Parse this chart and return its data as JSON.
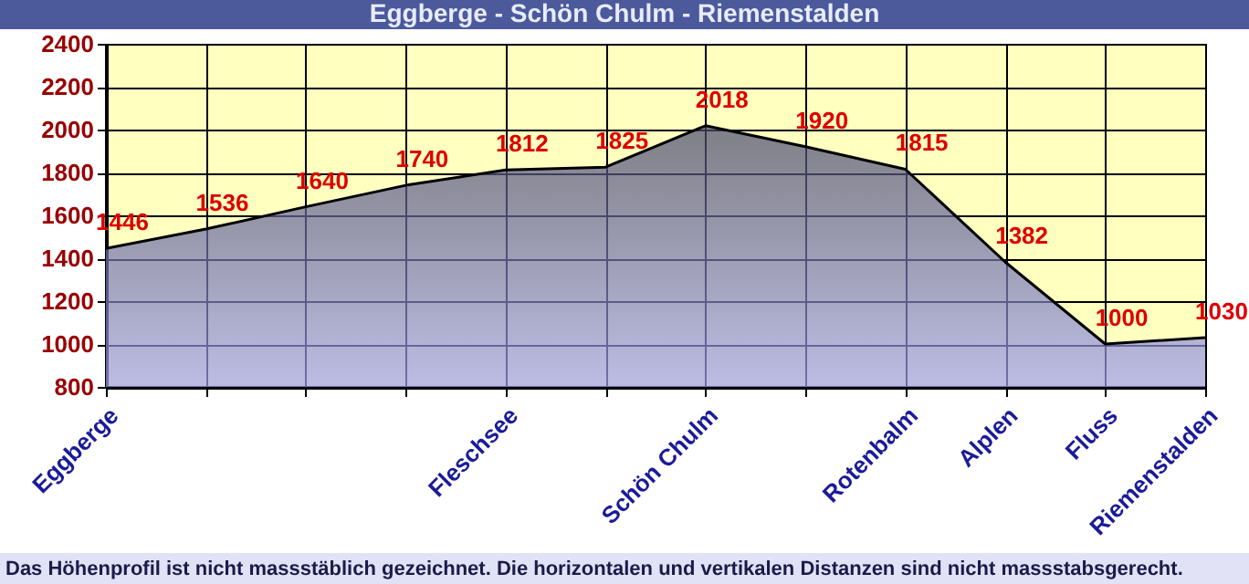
{
  "chart_data": {
    "type": "area",
    "title": "Eggberge - Schön Chulm - Riemenstalden",
    "categories": [
      "Eggberge",
      null,
      null,
      null,
      "Fleschsee",
      null,
      "Schön Chulm",
      null,
      "Rotenbalm",
      "Alplen",
      "Fluss",
      "Riemenstalden"
    ],
    "series": [
      {
        "color": "#a0a0f4",
        "values": [
          1446,
          1536,
          1640,
          1740,
          1812,
          1825,
          2018,
          1920,
          1815,
          1382,
          1000,
          1030
        ]
      }
    ],
    "ylim": [
      800,
      2400
    ],
    "yticks": [
      800,
      1000,
      1200,
      1400,
      1600,
      1800,
      2000,
      2200,
      2400
    ],
    "grid": true,
    "data_labels": true,
    "annotations": [
      "Das Höhenprofil ist nicht massstäblich gezeichnet. Die horizontalen und vertikalen Distanzen sind nicht massstabsgerecht."
    ]
  }
}
